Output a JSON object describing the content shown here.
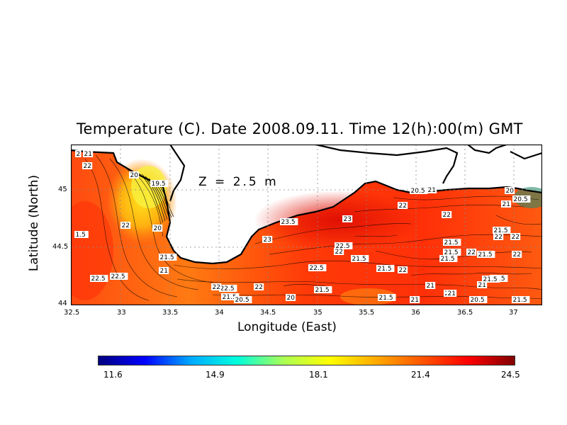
{
  "title": "Temperature (C). Date 2008.09.11. Time 12(h):00(m) GMT",
  "depth_label": "Z = 2.5 m",
  "xlabel": "Longitude (East)",
  "ylabel": "Latitude (North)",
  "x_ticks": [
    "32.5",
    "33",
    "33.5",
    "34",
    "34.5",
    "35",
    "35.5",
    "36",
    "36.5",
    "37"
  ],
  "y_ticks": [
    "45",
    "44.5",
    "44"
  ],
  "colorbar": {
    "min": 11.6,
    "max": 24.5,
    "ticks": [
      "11.6",
      "14.9",
      "18.1",
      "21.4",
      "24.5"
    ],
    "colors": [
      "#000080",
      "#0000ff",
      "#00aaff",
      "#00ffdd",
      "#aaff55",
      "#ffff00",
      "#ffaa00",
      "#ff5500",
      "#ff0000",
      "#800000"
    ]
  },
  "contour_labels": [
    "2",
    "21",
    "22",
    "20",
    "19.5",
    "20",
    "21.5",
    "22",
    "21",
    "22.5",
    "22.5",
    "1.5",
    "23.5",
    "23",
    "23",
    "22.5",
    "22",
    "22.5",
    "21.5",
    "21.5",
    "22",
    "22",
    "20.5",
    "21",
    "22",
    "21.5",
    "20",
    "20.5",
    "21",
    "22",
    "21.5",
    "22",
    "21.5",
    "21.5",
    "22",
    "22",
    "21.5",
    "21",
    "21.5",
    "21",
    "21.5",
    "21",
    "22.5",
    "21.5",
    "20.5",
    "20",
    "21.5",
    "21.5",
    "21",
    "21.5",
    "20.5",
    "21",
    "22",
    "22"
  ]
}
